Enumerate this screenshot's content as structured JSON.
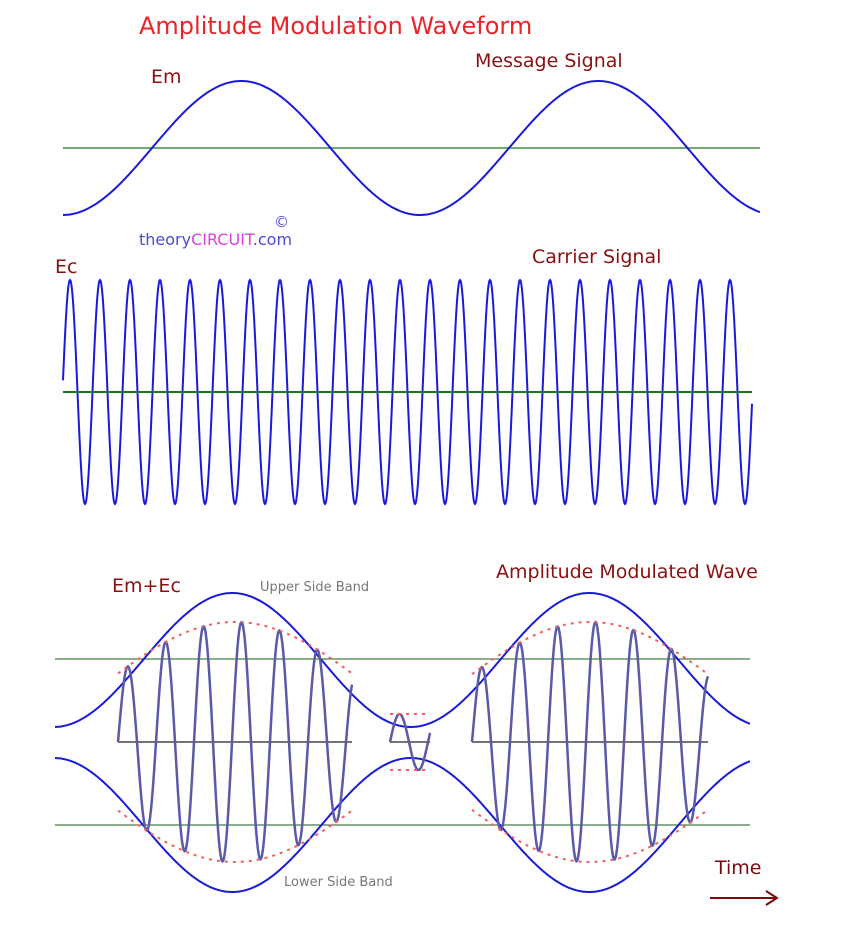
{
  "title": "Amplitude Modulation Waveform",
  "labels": {
    "em": "Em",
    "message": "Message Signal",
    "ec": "Ec",
    "carrier": "Carrier Signal",
    "emec": "Em+Ec",
    "am": "Amplitude Modulated Wave",
    "usb": "Upper Side Band",
    "lsb": "Lower Side Band",
    "time": "Time"
  },
  "watermark": {
    "part1": "theory",
    "part2": "CIRCUIT",
    "part3": ".com",
    "symbol": "©"
  },
  "colors": {
    "title": "#e8262a",
    "label": "#8b1010",
    "signal": "#1a1adb",
    "axis": "#1a7a1a",
    "modulated": "#5a5aa8",
    "envelope_dashed": "#f06060",
    "arrow": "#7a0a10",
    "watermark_blue": "#4a4ad8",
    "watermark_magenta": "#e040e0"
  }
}
